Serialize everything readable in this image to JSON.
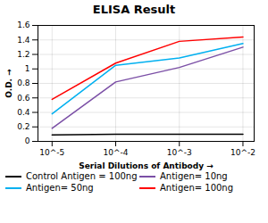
{
  "chart_data": {
    "type": "line",
    "title": "ELISA Result",
    "xlabel": "Serial Dilutions of Antibody",
    "ylabel": "O.D.",
    "x": [
      0.01,
      0.001,
      0.0001,
      1e-05
    ],
    "series": [
      {
        "name": "Control Antigen = 100ng",
        "color": "#000000",
        "values": [
          0.1,
          0.1,
          0.1,
          0.09
        ]
      },
      {
        "name": "Antigen= 10ng",
        "color": "#7b4fa6",
        "values": [
          1.3,
          1.02,
          0.82,
          0.18
        ]
      },
      {
        "name": "Antigen= 50ng",
        "color": "#00b0f0",
        "values": [
          1.35,
          1.15,
          1.05,
          0.38
        ]
      },
      {
        "name": "Antigen= 100ng",
        "color": "#ff0000",
        "values": [
          1.44,
          1.38,
          1.08,
          0.58
        ]
      }
    ],
    "log": "x",
    "xlim": [
      6e-06,
      0.015
    ],
    "xticks": [
      {
        "value": 0.01,
        "label": "10^-2"
      },
      {
        "value": 0.001,
        "label": "10^-3"
      },
      {
        "value": 0.0001,
        "label": "10^-4"
      },
      {
        "value": 1e-05,
        "label": "10^-5"
      }
    ],
    "ylim": [
      0,
      1.6
    ],
    "yticks": [
      0,
      0.2,
      0.4,
      0.6,
      0.8,
      1,
      1.2,
      1.4,
      1.6
    ],
    "grid": true,
    "legend": "bottom"
  }
}
